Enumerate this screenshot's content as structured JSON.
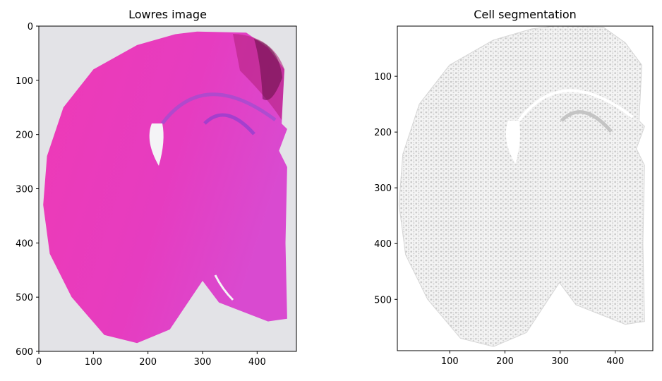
{
  "chart_data": [
    {
      "type": "image",
      "title": "Lowres image",
      "xlim": [
        0,
        472
      ],
      "ylim": [
        600,
        0
      ],
      "xticks": [
        0,
        100,
        200,
        300,
        400
      ],
      "yticks": [
        0,
        100,
        200,
        300,
        400,
        500,
        600
      ]
    },
    {
      "type": "image",
      "title": "Cell segmentation",
      "xlim": [
        5,
        468
      ],
      "ylim": [
        592,
        10
      ],
      "xticks": [
        100,
        200,
        300,
        400
      ],
      "yticks": [
        100,
        200,
        300,
        400,
        500
      ]
    }
  ]
}
